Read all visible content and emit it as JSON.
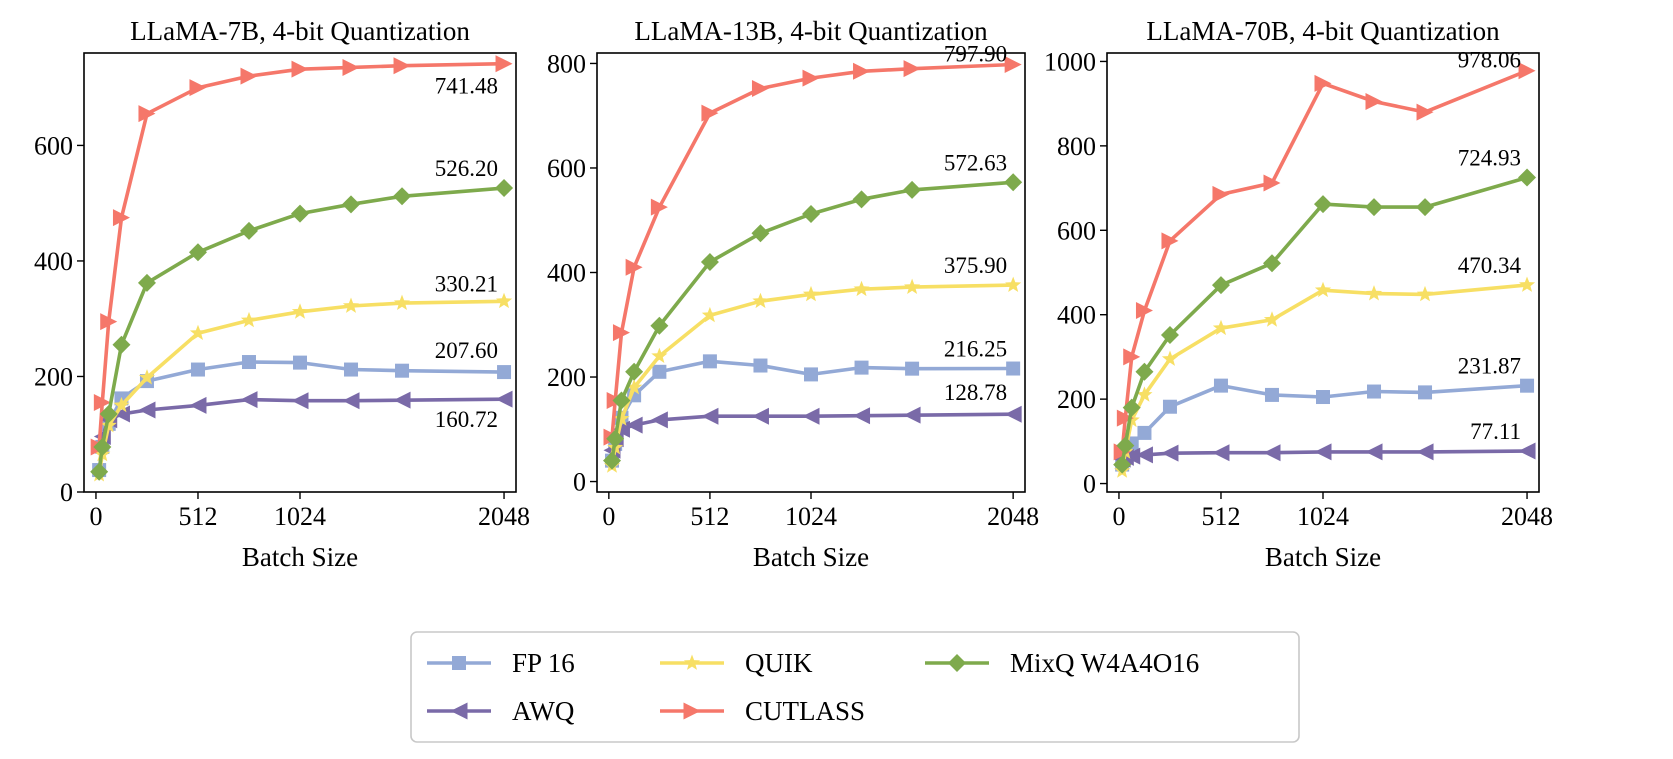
{
  "chart_data": [
    {
      "type": "line",
      "title": "LLaMA-7B, 4-bit Quantization",
      "xlabel": "Batch Size",
      "ylabel": "",
      "xlim": [
        -60,
        2108
      ],
      "ylim": [
        0,
        760
      ],
      "xticks": [
        0,
        512,
        1024,
        2048
      ],
      "yticks": [
        0,
        200,
        400,
        600
      ],
      "x": [
        16,
        32,
        64,
        128,
        256,
        512,
        768,
        1024,
        1280,
        1536,
        2048
      ],
      "series": [
        {
          "name": "FP 16",
          "values": [
            38,
            78,
            118,
            162,
            192,
            212,
            225,
            224,
            212,
            210,
            207.6
          ]
        },
        {
          "name": "AWQ",
          "values": [
            80,
            96,
            125,
            135,
            142,
            150,
            160,
            158,
            158,
            159,
            160.72
          ]
        },
        {
          "name": "QUIK",
          "values": [
            30,
            65,
            115,
            150,
            198,
            275,
            297,
            312,
            322,
            327,
            330.21
          ]
        },
        {
          "name": "CUTLASS",
          "values": [
            78,
            155,
            295,
            475,
            655,
            700,
            720,
            732,
            735,
            738,
            741.48
          ]
        },
        {
          "name": "MixQ W4A4O16",
          "values": [
            35,
            78,
            135,
            255,
            362,
            415,
            452,
            482,
            498,
            512,
            526.2
          ]
        }
      ],
      "annotations": [
        {
          "text": "741.48",
          "series": "CUTLASS"
        },
        {
          "text": "526.20",
          "series": "MixQ W4A4O16"
        },
        {
          "text": "330.21",
          "series": "QUIK"
        },
        {
          "text": "207.60",
          "series": "FP 16"
        },
        {
          "text": "160.72",
          "series": "AWQ"
        }
      ]
    },
    {
      "type": "line",
      "title": "LLaMA-13B, 4-bit Quantization",
      "xlabel": "Batch Size",
      "ylabel": "",
      "xlim": [
        -60,
        2108
      ],
      "ylim": [
        -20,
        820
      ],
      "xticks": [
        0,
        512,
        1024,
        2048
      ],
      "yticks": [
        0,
        200,
        400,
        600,
        800
      ],
      "x": [
        16,
        32,
        64,
        128,
        256,
        512,
        768,
        1024,
        1280,
        1536,
        2048
      ],
      "series": [
        {
          "name": "FP 16",
          "values": [
            40,
            72,
            122,
            165,
            210,
            230,
            222,
            205,
            218,
            216,
            216.25
          ]
        },
        {
          "name": "AWQ",
          "values": [
            60,
            82,
            100,
            108,
            118,
            125,
            125,
            125,
            126,
            127,
            128.78
          ]
        },
        {
          "name": "QUIK",
          "values": [
            30,
            65,
            120,
            180,
            240,
            318,
            345,
            358,
            368,
            372,
            375.9
          ]
        },
        {
          "name": "CUTLASS",
          "values": [
            85,
            155,
            285,
            410,
            525,
            705,
            752,
            772,
            785,
            790,
            797.9
          ]
        },
        {
          "name": "MixQ W4A4O16",
          "values": [
            40,
            82,
            155,
            210,
            298,
            420,
            475,
            512,
            540,
            558,
            572.63
          ]
        }
      ],
      "annotations": [
        {
          "text": "797.90",
          "series": "CUTLASS"
        },
        {
          "text": "572.63",
          "series": "MixQ W4A4O16"
        },
        {
          "text": "375.90",
          "series": "QUIK"
        },
        {
          "text": "216.25",
          "series": "FP 16"
        },
        {
          "text": "128.78",
          "series": "AWQ"
        }
      ]
    },
    {
      "type": "line",
      "title": "LLaMA-70B, 4-bit Quantization",
      "xlabel": "Batch Size",
      "ylabel": "",
      "xlim": [
        -60,
        2108
      ],
      "ylim": [
        -20,
        1020
      ],
      "xticks": [
        0,
        512,
        1024,
        2048
      ],
      "yticks": [
        0,
        200,
        400,
        600,
        800,
        1000
      ],
      "x": [
        16,
        32,
        64,
        128,
        256,
        512,
        768,
        1024,
        1280,
        1536,
        2048
      ],
      "series": [
        {
          "name": "FP 16",
          "values": [
            45,
            70,
            95,
            120,
            182,
            232,
            210,
            205,
            218,
            216,
            231.87
          ]
        },
        {
          "name": "AWQ",
          "values": [
            58,
            62,
            65,
            68,
            72,
            73,
            73,
            75,
            75,
            75,
            77.11
          ]
        },
        {
          "name": "QUIK",
          "values": [
            30,
            75,
            150,
            210,
            295,
            368,
            388,
            458,
            450,
            448,
            470.34
          ]
        },
        {
          "name": "CUTLASS",
          "values": [
            75,
            155,
            300,
            410,
            575,
            685,
            712,
            948,
            905,
            880,
            978.06
          ]
        },
        {
          "name": "MixQ W4A4O16",
          "values": [
            45,
            90,
            180,
            265,
            352,
            470,
            522,
            662,
            655,
            655,
            724.93
          ]
        }
      ],
      "annotations": [
        {
          "text": "978.06",
          "series": "CUTLASS"
        },
        {
          "text": "724.93",
          "series": "MixQ W4A4O16"
        },
        {
          "text": "470.34",
          "series": "QUIK"
        },
        {
          "text": "231.87",
          "series": "FP 16"
        },
        {
          "text": "77.11",
          "series": "AWQ"
        }
      ]
    }
  ],
  "legend": {
    "placement": "bottom-center",
    "items": [
      {
        "label": "FP 16",
        "marker": "square"
      },
      {
        "label": "QUIK",
        "marker": "star"
      },
      {
        "label": "MixQ W4A4O16",
        "marker": "diamond"
      },
      {
        "label": "AWQ",
        "marker": "triangle-left"
      },
      {
        "label": "CUTLASS",
        "marker": "triangle-right"
      }
    ]
  },
  "colors": {
    "FP 16": "#93a9d6",
    "AWQ": "#7a6aa8",
    "QUIK": "#f7df64",
    "CUTLASS": "#f5776a",
    "MixQ W4A4O16": "#7eaa4c"
  }
}
